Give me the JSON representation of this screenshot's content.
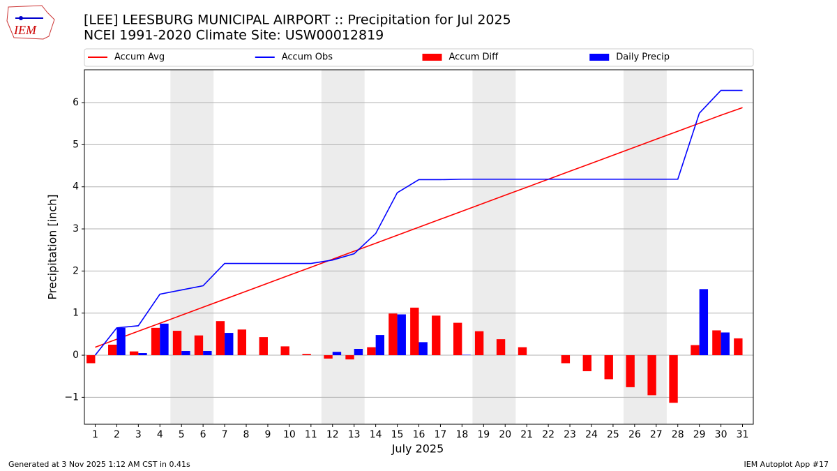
{
  "logo_text": "IEM",
  "chart_data": {
    "type": "bar",
    "title": "[LEE] LEESBURG MUNICIPAL AIRPORT :: Precipitation for Jul 2025",
    "subtitle": "NCEI 1991-2020 Climate Site: USW00012819",
    "x_label": "July 2025",
    "y_label": "Precipitation [inch]",
    "x": [
      1,
      2,
      3,
      4,
      5,
      6,
      7,
      8,
      9,
      10,
      11,
      12,
      13,
      14,
      15,
      16,
      17,
      18,
      19,
      20,
      21,
      22,
      23,
      24,
      25,
      26,
      27,
      28,
      29,
      30,
      31
    ],
    "xlim": [
      0.5,
      31.5
    ],
    "xticks": [
      1,
      2,
      3,
      4,
      5,
      6,
      7,
      8,
      9,
      10,
      11,
      12,
      13,
      14,
      15,
      16,
      17,
      18,
      19,
      20,
      21,
      22,
      23,
      24,
      25,
      26,
      27,
      28,
      29,
      30,
      31
    ],
    "ylim": [
      -1.64,
      6.78
    ],
    "yticks": [
      {
        "value": -1,
        "label": "−1"
      },
      0,
      1,
      2,
      3,
      4,
      5,
      6
    ],
    "grid": true,
    "legend": "top",
    "series": [
      {
        "name": "Accum Avg",
        "type": "line",
        "color": "#ff0000",
        "values": [
          0.19,
          0.38,
          0.57,
          0.76,
          0.95,
          1.14,
          1.33,
          1.52,
          1.71,
          1.9,
          2.09,
          2.28,
          2.47,
          2.66,
          2.85,
          3.04,
          3.23,
          3.42,
          3.61,
          3.8,
          3.99,
          4.18,
          4.37,
          4.56,
          4.75,
          4.94,
          5.13,
          5.32,
          5.51,
          5.7,
          5.88
        ]
      },
      {
        "name": "Accum Obs",
        "type": "line",
        "color": "#0000ff",
        "values": [
          0,
          0.65,
          0.7,
          1.45,
          1.55,
          1.65,
          2.18,
          2.18,
          2.18,
          2.18,
          2.18,
          2.26,
          2.41,
          2.89,
          3.86,
          4.17,
          4.17,
          4.18,
          4.18,
          4.18,
          4.18,
          4.18,
          4.18,
          4.18,
          4.18,
          4.18,
          4.18,
          4.18,
          5.75,
          6.29,
          6.29
        ]
      },
      {
        "name": "Accum Diff",
        "type": "bar",
        "color": "#ff0000",
        "values": [
          -0.19,
          0.25,
          0.09,
          0.65,
          0.58,
          0.47,
          0.81,
          0.61,
          0.43,
          0.21,
          0.03,
          -0.08,
          -0.1,
          0.19,
          0.99,
          1.13,
          0.94,
          0.77,
          0.57,
          0.38,
          0.19,
          0,
          -0.19,
          -0.38,
          -0.57,
          -0.76,
          -0.95,
          -1.13,
          0.24,
          0.59,
          0.4
        ]
      },
      {
        "name": "Daily Precip",
        "type": "bar",
        "color": "#0000ff",
        "values": [
          0,
          0.65,
          0.05,
          0.75,
          0.1,
          0.1,
          0.53,
          0,
          0,
          0,
          0,
          0.08,
          0.15,
          0.48,
          0.97,
          0.31,
          0,
          0.01,
          0,
          0,
          0,
          0,
          0,
          0,
          0,
          0,
          0,
          0,
          1.57,
          0.54,
          0
        ]
      }
    ],
    "footer_left": "Generated at 3 Nov 2025 1:12 AM CST in 0.41s",
    "footer_right": "IEM Autoplot App #17"
  }
}
